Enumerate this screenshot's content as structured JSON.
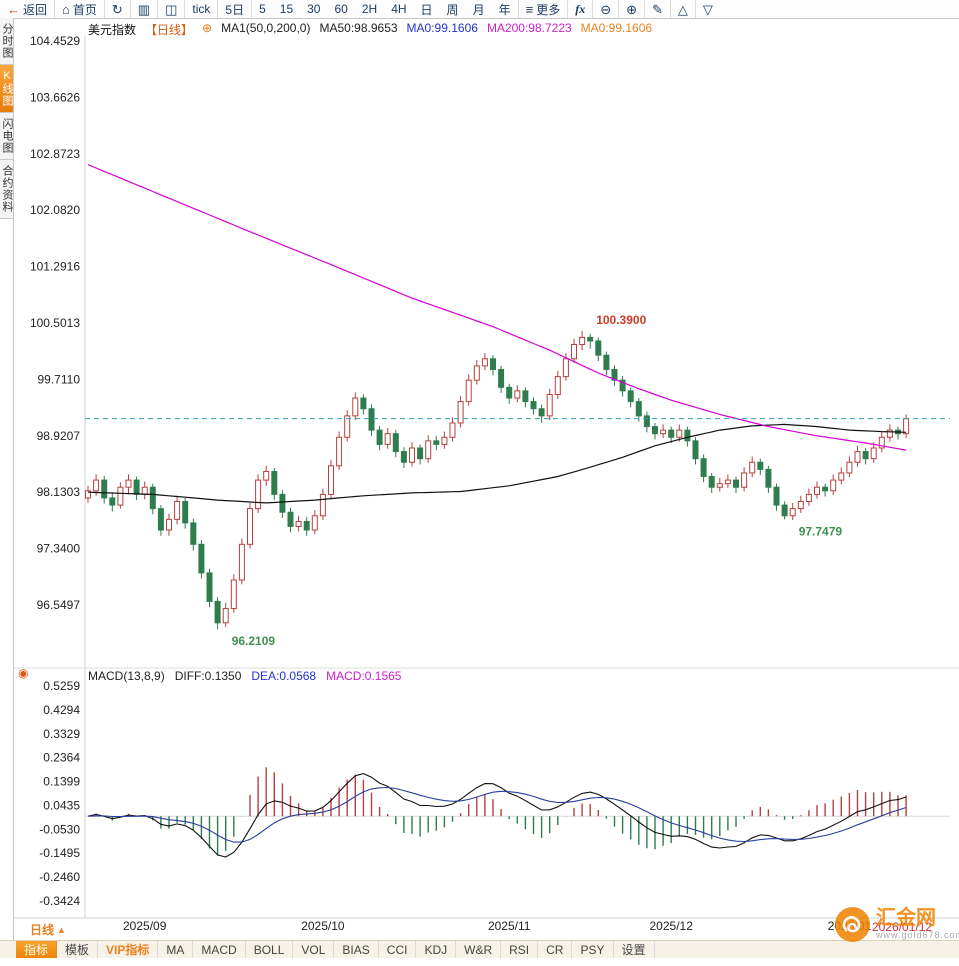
{
  "toolbar": {
    "items": [
      {
        "name": "back",
        "icon": "arrow-back",
        "icon_color": "#c0392b",
        "label": "返回",
        "sep": true
      },
      {
        "name": "home",
        "icon": "home",
        "label": "首页",
        "sep": true
      },
      {
        "name": "refresh",
        "icon": "refresh",
        "sep": true
      },
      {
        "name": "bar-chart",
        "icon": "bar-chart",
        "sep": true
      },
      {
        "name": "candle-chart",
        "icon": "candle-chart",
        "sep": true
      },
      {
        "name": "tick",
        "label": "tick",
        "sep": true
      },
      {
        "name": "five-day",
        "label": "5日",
        "sep": true
      },
      {
        "name": "tf-5",
        "label": "5"
      },
      {
        "name": "tf-15",
        "label": "15"
      },
      {
        "name": "tf-30",
        "label": "30"
      },
      {
        "name": "tf-60",
        "label": "60"
      },
      {
        "name": "tf-2h",
        "label": "2H"
      },
      {
        "name": "tf-4h",
        "label": "4H"
      },
      {
        "name": "tf-day",
        "label": "日"
      },
      {
        "name": "tf-week",
        "label": "周"
      },
      {
        "name": "tf-month",
        "label": "月"
      },
      {
        "name": "tf-year",
        "label": "年",
        "sep": true
      },
      {
        "name": "more",
        "icon": "menu",
        "label": "更多",
        "sep": true
      },
      {
        "name": "fx",
        "label": "fx",
        "sep": true
      },
      {
        "name": "zoom-out",
        "icon": "zoom-out",
        "sep": true
      },
      {
        "name": "zoom-in",
        "icon": "zoom-in",
        "sep": true
      },
      {
        "name": "draw",
        "icon": "pencil",
        "sep": true
      },
      {
        "name": "shapes",
        "icon": "triangle",
        "sep": true
      },
      {
        "name": "shapes-2",
        "icon": "triangle-down"
      }
    ]
  },
  "sidebar": {
    "tabs": [
      {
        "name": "time-chart",
        "label": "分时图",
        "selected": false
      },
      {
        "name": "kline-chart",
        "label": "K线图",
        "selected": true
      },
      {
        "name": "lightning-chart",
        "label": "闪电图",
        "selected": false
      },
      {
        "name": "contract-info",
        "label": "合约资料",
        "selected": false
      }
    ]
  },
  "chart_header": {
    "parts": [
      {
        "name": "symbol",
        "text": "美元指数",
        "color": "#111111"
      },
      {
        "name": "period",
        "text": "【日线】",
        "color": "#e05a10"
      },
      {
        "name": "add-indicator-icon",
        "text": "⊕",
        "color": "#e8821e"
      },
      {
        "name": "ma-settings",
        "text": "MA1(50,0,200,0)",
        "color": "#222222"
      },
      {
        "name": "ma50-value",
        "text": "MA50:98.9653",
        "color": "#222222"
      },
      {
        "name": "ma0-blue-value",
        "text": "MA0:99.1606",
        "color": "#2233cc"
      },
      {
        "name": "ma200-value",
        "text": "MA200:98.7223",
        "color": "#cc22cc"
      },
      {
        "name": "ma0-orange-value",
        "text": "MA0:99.1606",
        "color": "#e8821e"
      }
    ]
  },
  "macd_header": {
    "parts": [
      {
        "name": "macd-params",
        "text": "MACD(13,8,9)",
        "color": "#222222"
      },
      {
        "name": "diff-value",
        "text": "DIFF:0.1350",
        "color": "#222222"
      },
      {
        "name": "dea-value",
        "text": "DEA:0.0568",
        "color": "#2233cc"
      },
      {
        "name": "macd-value",
        "text": "MACD:0.1565",
        "color": "#cc22cc"
      }
    ]
  },
  "chart_data": {
    "type": "candlestick",
    "symbol": "美元指数",
    "period": "日线",
    "price_axis": [
      104.4529,
      103.6626,
      102.8723,
      102.082,
      101.2916,
      100.5013,
      99.711,
      98.9207,
      98.1303,
      97.34,
      96.5497
    ],
    "macd_axis": [
      0.5259,
      0.4294,
      0.3329,
      0.2364,
      0.1399,
      0.0435,
      -0.053,
      -0.1495,
      -0.246,
      -0.3424
    ],
    "x_labels": [
      {
        "label": "2025/09",
        "idx": 7
      },
      {
        "label": "2025/10",
        "idx": 29
      },
      {
        "label": "2025/11",
        "idx": 52
      },
      {
        "label": "2025/12",
        "idx": 72
      },
      {
        "label": "2026/01",
        "idx": 94
      }
    ],
    "candles": [
      [
        98.05,
        98.22,
        97.98,
        98.15
      ],
      [
        98.15,
        98.38,
        98.08,
        98.3
      ],
      [
        98.3,
        98.36,
        97.97,
        98.05
      ],
      [
        98.05,
        98.12,
        97.86,
        97.95
      ],
      [
        97.95,
        98.27,
        97.9,
        98.2
      ],
      [
        98.2,
        98.38,
        98.12,
        98.3
      ],
      [
        98.3,
        98.35,
        98.02,
        98.1
      ],
      [
        98.1,
        98.28,
        98.03,
        98.2
      ],
      [
        98.2,
        98.25,
        97.82,
        97.9
      ],
      [
        97.9,
        97.95,
        97.52,
        97.6
      ],
      [
        97.6,
        97.83,
        97.52,
        97.75
      ],
      [
        97.75,
        98.08,
        97.68,
        98.0
      ],
      [
        98.0,
        98.05,
        97.62,
        97.7
      ],
      [
        97.7,
        97.76,
        97.31,
        97.4
      ],
      [
        97.4,
        97.46,
        96.92,
        97.0
      ],
      [
        97.0,
        97.06,
        96.52,
        96.6
      ],
      [
        96.6,
        96.66,
        96.21,
        96.3
      ],
      [
        96.3,
        96.58,
        96.24,
        96.5
      ],
      [
        96.5,
        96.98,
        96.44,
        96.9
      ],
      [
        96.9,
        97.48,
        96.84,
        97.4
      ],
      [
        97.4,
        97.98,
        97.34,
        97.9
      ],
      [
        97.9,
        98.38,
        97.84,
        98.3
      ],
      [
        98.3,
        98.5,
        98.22,
        98.42
      ],
      [
        98.42,
        98.47,
        98.02,
        98.1
      ],
      [
        98.1,
        98.16,
        97.77,
        97.85
      ],
      [
        97.85,
        97.91,
        97.57,
        97.65
      ],
      [
        97.65,
        97.8,
        97.58,
        97.72
      ],
      [
        97.72,
        97.78,
        97.52,
        97.6
      ],
      [
        97.6,
        97.88,
        97.54,
        97.8
      ],
      [
        97.8,
        98.18,
        97.74,
        98.1
      ],
      [
        98.1,
        98.58,
        98.04,
        98.5
      ],
      [
        98.5,
        98.98,
        98.44,
        98.9
      ],
      [
        98.9,
        99.28,
        98.84,
        99.2
      ],
      [
        99.2,
        99.53,
        99.14,
        99.45
      ],
      [
        99.45,
        99.5,
        99.22,
        99.3
      ],
      [
        99.3,
        99.36,
        98.92,
        99.0
      ],
      [
        99.0,
        99.06,
        98.72,
        98.8
      ],
      [
        98.8,
        99.03,
        98.74,
        98.95
      ],
      [
        98.95,
        99.0,
        98.62,
        98.7
      ],
      [
        98.7,
        98.76,
        98.47,
        98.55
      ],
      [
        98.55,
        98.83,
        98.49,
        98.75
      ],
      [
        98.75,
        98.8,
        98.52,
        98.6
      ],
      [
        98.6,
        98.93,
        98.54,
        98.85
      ],
      [
        98.85,
        98.92,
        98.72,
        98.8
      ],
      [
        98.8,
        98.98,
        98.74,
        98.9
      ],
      [
        98.9,
        99.18,
        98.84,
        99.1
      ],
      [
        99.1,
        99.48,
        99.04,
        99.4
      ],
      [
        99.4,
        99.78,
        99.34,
        99.7
      ],
      [
        99.7,
        99.98,
        99.64,
        99.9
      ],
      [
        99.9,
        100.08,
        99.84,
        100.0
      ],
      [
        100.0,
        100.05,
        99.77,
        99.85
      ],
      [
        99.85,
        99.9,
        99.52,
        99.6
      ],
      [
        99.6,
        99.65,
        99.37,
        99.45
      ],
      [
        99.45,
        99.63,
        99.39,
        99.55
      ],
      [
        99.55,
        99.6,
        99.32,
        99.4
      ],
      [
        99.4,
        99.46,
        99.22,
        99.3
      ],
      [
        99.3,
        99.36,
        99.1,
        99.2
      ],
      [
        99.2,
        99.58,
        99.14,
        99.5
      ],
      [
        99.5,
        99.83,
        99.44,
        99.75
      ],
      [
        99.75,
        100.08,
        99.69,
        100.0
      ],
      [
        100.0,
        100.28,
        99.94,
        100.2
      ],
      [
        100.2,
        100.39,
        100.12,
        100.3
      ],
      [
        100.3,
        100.35,
        100.14,
        100.25
      ],
      [
        100.25,
        100.3,
        99.97,
        100.05
      ],
      [
        100.05,
        100.1,
        99.77,
        99.85
      ],
      [
        99.85,
        99.91,
        99.62,
        99.7
      ],
      [
        99.7,
        99.76,
        99.47,
        99.55
      ],
      [
        99.55,
        99.6,
        99.32,
        99.4
      ],
      [
        99.4,
        99.45,
        99.12,
        99.2
      ],
      [
        99.2,
        99.26,
        98.97,
        99.05
      ],
      [
        99.05,
        99.1,
        98.87,
        98.95
      ],
      [
        98.95,
        99.08,
        98.89,
        99.0
      ],
      [
        99.0,
        99.05,
        98.82,
        98.9
      ],
      [
        98.9,
        99.08,
        98.84,
        99.0
      ],
      [
        99.0,
        99.05,
        98.77,
        98.85
      ],
      [
        98.85,
        98.9,
        98.52,
        98.6
      ],
      [
        98.6,
        98.66,
        98.27,
        98.35
      ],
      [
        98.35,
        98.4,
        98.12,
        98.2
      ],
      [
        98.2,
        98.33,
        98.14,
        98.25
      ],
      [
        98.25,
        98.38,
        98.19,
        98.3
      ],
      [
        98.3,
        98.35,
        98.12,
        98.2
      ],
      [
        98.2,
        98.48,
        98.14,
        98.4
      ],
      [
        98.4,
        98.63,
        98.34,
        98.55
      ],
      [
        98.55,
        98.6,
        98.37,
        98.45
      ],
      [
        98.45,
        98.5,
        98.12,
        98.2
      ],
      [
        98.2,
        98.25,
        97.87,
        97.95
      ],
      [
        97.95,
        98.0,
        97.75,
        97.8
      ],
      [
        97.8,
        97.98,
        97.74,
        97.9
      ],
      [
        97.9,
        98.08,
        97.84,
        98.0
      ],
      [
        98.0,
        98.18,
        97.94,
        98.1
      ],
      [
        98.1,
        98.28,
        98.04,
        98.2
      ],
      [
        98.2,
        98.25,
        98.07,
        98.15
      ],
      [
        98.15,
        98.38,
        98.09,
        98.3
      ],
      [
        98.3,
        98.48,
        98.24,
        98.4
      ],
      [
        98.4,
        98.63,
        98.34,
        98.55
      ],
      [
        98.55,
        98.78,
        98.49,
        98.7
      ],
      [
        98.7,
        98.75,
        98.52,
        98.6
      ],
      [
        98.6,
        98.83,
        98.54,
        98.75
      ],
      [
        98.75,
        98.98,
        98.69,
        98.9
      ],
      [
        98.9,
        99.08,
        98.84,
        99.0
      ],
      [
        99.0,
        99.05,
        98.87,
        98.95
      ],
      [
        98.95,
        99.22,
        98.89,
        99.16
      ]
    ],
    "ma_lines": [
      {
        "name": "MA50",
        "color": "#111111",
        "points": [
          [
            0,
            98.13
          ],
          [
            8,
            98.1
          ],
          [
            16,
            98.02
          ],
          [
            22,
            97.98
          ],
          [
            28,
            98.02
          ],
          [
            34,
            98.08
          ],
          [
            40,
            98.12
          ],
          [
            46,
            98.14
          ],
          [
            52,
            98.22
          ],
          [
            58,
            98.35
          ],
          [
            62,
            98.48
          ],
          [
            66,
            98.62
          ],
          [
            70,
            98.78
          ],
          [
            74,
            98.9
          ],
          [
            78,
            99.0
          ],
          [
            82,
            99.06
          ],
          [
            86,
            99.08
          ],
          [
            90,
            99.05
          ],
          [
            94,
            99.0
          ],
          [
            98,
            98.98
          ],
          [
            101,
            98.97
          ]
        ]
      },
      {
        "name": "MA200",
        "color": "#d400d4",
        "points": [
          [
            0,
            102.72
          ],
          [
            10,
            102.25
          ],
          [
            20,
            101.78
          ],
          [
            30,
            101.32
          ],
          [
            40,
            100.85
          ],
          [
            50,
            100.45
          ],
          [
            57,
            100.12
          ],
          [
            63,
            99.8
          ],
          [
            68,
            99.58
          ],
          [
            72,
            99.42
          ],
          [
            78,
            99.22
          ],
          [
            84,
            99.05
          ],
          [
            90,
            98.92
          ],
          [
            96,
            98.82
          ],
          [
            101,
            98.72
          ]
        ]
      }
    ],
    "last_price_line": {
      "price": 99.1606,
      "color": "#2aa8a8"
    },
    "annotations": [
      {
        "text": "100.3900",
        "idx": 62,
        "price": 100.39,
        "color": "#d03a2a",
        "pos": "above"
      },
      {
        "text": "96.2109",
        "idx": 17,
        "price": 96.21,
        "color": "#3f8f4f",
        "pos": "below"
      },
      {
        "text": "97.7479",
        "idx": 87,
        "price": 97.7479,
        "color": "#3f8f4f",
        "pos": "below"
      }
    ],
    "macd_params": {
      "short": 8,
      "long": 13,
      "signal": 9
    },
    "colors": {
      "up": "#b8403c",
      "down": "#2f7d4e",
      "macd_pos": "#b8403c",
      "macd_neg": "#2f7d4e",
      "diff_line": "#111111",
      "dea_line": "#2b3f9e",
      "axis_text": "#222222"
    }
  },
  "bottom": {
    "period_label": "日线",
    "date_label": "2026/01/12",
    "tabs": [
      {
        "label": "指标",
        "style": "selected"
      },
      {
        "label": "模板",
        "style": "normal"
      },
      {
        "label": "VIP指标",
        "style": "vip"
      },
      {
        "label": "MA",
        "style": "normal"
      },
      {
        "label": "MACD",
        "style": "normal"
      },
      {
        "label": "BOLL",
        "style": "normal"
      },
      {
        "label": "VOL",
        "style": "normal"
      },
      {
        "label": "BIAS",
        "style": "normal"
      },
      {
        "label": "CCI",
        "style": "normal"
      },
      {
        "label": "KDJ",
        "style": "normal"
      },
      {
        "label": "W&R",
        "style": "normal"
      },
      {
        "label": "RSI",
        "style": "normal"
      },
      {
        "label": "CR",
        "style": "normal"
      },
      {
        "label": "PSY",
        "style": "normal"
      },
      {
        "label": "设置",
        "style": "normal"
      }
    ]
  },
  "logo": {
    "name": "汇金网",
    "url": "www.gold678.com"
  }
}
